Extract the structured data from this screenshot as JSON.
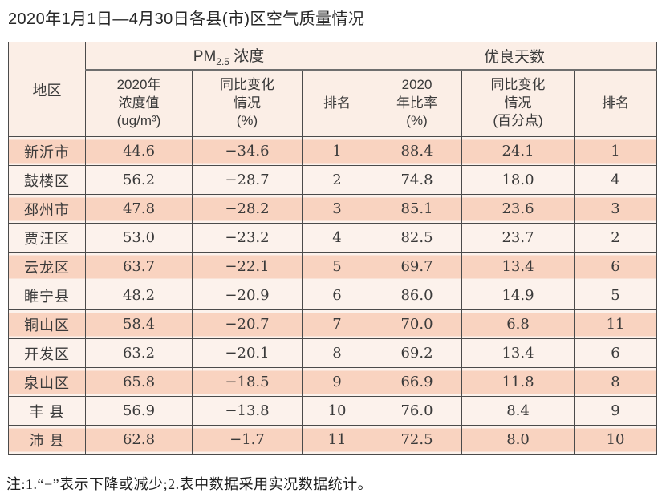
{
  "title": "2020年1月1日—4月30日各县(市)区空气质量情况",
  "note": "注:1.“−”表示下降或减少;2.表中数据采用实况数据统计。",
  "table": {
    "region_header": "地区",
    "pm_group": {
      "prefix": "PM",
      "subscript": "2.5",
      "suffix": " 浓度"
    },
    "good_group": "优良天数",
    "columns": [
      {
        "header": "2020年\n浓度值\n(ug/m³)"
      },
      {
        "header": "同比变化\n情况\n(%)"
      },
      {
        "header": "排名"
      },
      {
        "header": "2020\n年比率\n(%)"
      },
      {
        "header": "同比变化\n情况\n(百分点)"
      },
      {
        "header": "排名"
      }
    ]
  },
  "rows": [
    {
      "region": "新沂市",
      "pm_value": "44.6",
      "pm_change": "−34.6",
      "pm_rank": "1",
      "good_ratio": "88.4",
      "good_change": "24.1",
      "good_rank": "1"
    },
    {
      "region": "鼓楼区",
      "pm_value": "56.2",
      "pm_change": "−28.7",
      "pm_rank": "2",
      "good_ratio": "74.8",
      "good_change": "18.0",
      "good_rank": "4"
    },
    {
      "region": "邳州市",
      "pm_value": "47.8",
      "pm_change": "−28.2",
      "pm_rank": "3",
      "good_ratio": "85.1",
      "good_change": "23.6",
      "good_rank": "3"
    },
    {
      "region": "贾汪区",
      "pm_value": "53.0",
      "pm_change": "−23.2",
      "pm_rank": "4",
      "good_ratio": "82.5",
      "good_change": "23.7",
      "good_rank": "2"
    },
    {
      "region": "云龙区",
      "pm_value": "63.7",
      "pm_change": "−22.1",
      "pm_rank": "5",
      "good_ratio": "69.7",
      "good_change": "13.4",
      "good_rank": "6"
    },
    {
      "region": "睢宁县",
      "pm_value": "48.2",
      "pm_change": "−20.9",
      "pm_rank": "6",
      "good_ratio": "86.0",
      "good_change": "14.9",
      "good_rank": "5"
    },
    {
      "region": "铜山区",
      "pm_value": "58.4",
      "pm_change": "−20.7",
      "pm_rank": "7",
      "good_ratio": "70.0",
      "good_change": "6.8",
      "good_rank": "11"
    },
    {
      "region": "开发区",
      "pm_value": "63.2",
      "pm_change": "−20.1",
      "pm_rank": "8",
      "good_ratio": "69.2",
      "good_change": "13.4",
      "good_rank": "6"
    },
    {
      "region": "泉山区",
      "pm_value": "65.8",
      "pm_change": "−18.5",
      "pm_rank": "9",
      "good_ratio": "66.9",
      "good_change": "11.8",
      "good_rank": "8"
    },
    {
      "region": "丰 县",
      "pm_value": "56.9",
      "pm_change": "−13.8",
      "pm_rank": "10",
      "good_ratio": "76.0",
      "good_change": "8.4",
      "good_rank": "9"
    },
    {
      "region": "沛 县",
      "pm_value": "62.8",
      "pm_change": "−1.7",
      "pm_rank": "11",
      "good_ratio": "72.5",
      "good_change": "8.0",
      "good_rank": "10"
    }
  ],
  "chart_data": {
    "type": "table",
    "title": "2020年1月1日—4月30日各县(市)区空气质量情况",
    "column_groups": [
      "PM2.5浓度",
      "优良天数"
    ],
    "columns": [
      "地区",
      "2020年浓度值(ug/m³)",
      "同比变化情况(%)",
      "排名",
      "2020年比率(%)",
      "同比变化情况(百分点)",
      "排名"
    ],
    "rows": [
      [
        "新沂市",
        44.6,
        -34.6,
        1,
        88.4,
        24.1,
        1
      ],
      [
        "鼓楼区",
        56.2,
        -28.7,
        2,
        74.8,
        18.0,
        4
      ],
      [
        "邳州市",
        47.8,
        -28.2,
        3,
        85.1,
        23.6,
        3
      ],
      [
        "贾汪区",
        53.0,
        -23.2,
        4,
        82.5,
        23.7,
        2
      ],
      [
        "云龙区",
        63.7,
        -22.1,
        5,
        69.7,
        13.4,
        6
      ],
      [
        "睢宁县",
        48.2,
        -20.9,
        6,
        86.0,
        14.9,
        5
      ],
      [
        "铜山区",
        58.4,
        -20.7,
        7,
        70.0,
        6.8,
        11
      ],
      [
        "开发区",
        63.2,
        -20.1,
        8,
        69.2,
        13.4,
        6
      ],
      [
        "泉山区",
        65.8,
        -18.5,
        9,
        66.9,
        11.8,
        8
      ],
      [
        "丰县",
        56.9,
        -13.8,
        10,
        76.0,
        8.4,
        9
      ],
      [
        "沛县",
        62.8,
        -1.7,
        11,
        72.5,
        8.0,
        10
      ]
    ]
  },
  "colors": {
    "row_highlight": "#f9d3c0",
    "row_light": "#fcf2ec",
    "header_bg": "#fbeee6",
    "border": "#4b4b4b",
    "group_underline": "#6e6e6e",
    "text": "#3a3a3a",
    "title_text": "#262626"
  }
}
